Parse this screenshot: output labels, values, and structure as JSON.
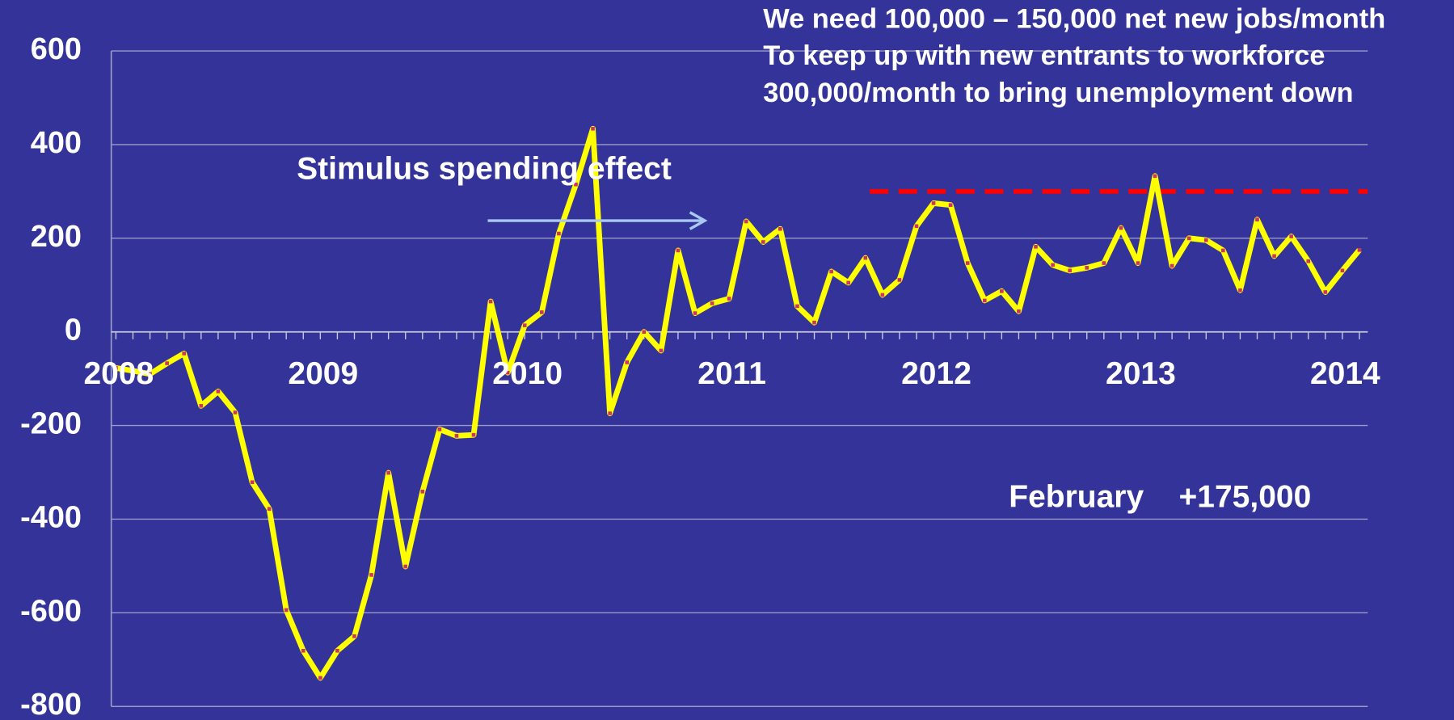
{
  "chart_data": {
    "type": "line",
    "categories": [
      "2008",
      null,
      null,
      null,
      null,
      null,
      null,
      null,
      null,
      null,
      null,
      null,
      "2009",
      null,
      null,
      null,
      null,
      null,
      null,
      null,
      null,
      null,
      null,
      null,
      "2010",
      null,
      null,
      null,
      null,
      null,
      null,
      null,
      null,
      null,
      null,
      null,
      "2011",
      null,
      null,
      null,
      null,
      null,
      null,
      null,
      null,
      null,
      null,
      null,
      "2012",
      null,
      null,
      null,
      null,
      null,
      null,
      null,
      null,
      null,
      null,
      null,
      "2013",
      null,
      null,
      null,
      null,
      null,
      null,
      null,
      null,
      null,
      null,
      null,
      "2014",
      null
    ],
    "series": [
      {
        "color": "#ffff00",
        "marker_color": "#cc3366",
        "values": [
          -77,
          -83,
          -90,
          -67,
          -46,
          -158,
          -127,
          -172,
          -321,
          -378,
          -594,
          -681,
          -739,
          -681,
          -650,
          -519,
          -301,
          -501,
          -341,
          -208,
          -222,
          -220,
          65,
          -87,
          14,
          42,
          210,
          315,
          434,
          -174,
          -65,
          0,
          -40,
          174,
          40,
          61,
          71,
          236,
          192,
          220,
          55,
          20,
          129,
          105,
          158,
          79,
          111,
          226,
          275,
          271,
          147,
          67,
          87,
          44,
          182,
          143,
          131,
          137,
          147,
          222,
          147,
          333,
          141,
          200,
          196,
          174,
          89,
          240,
          162,
          204,
          151,
          85,
          131,
          175
        ]
      }
    ],
    "ylim": [
      -800,
      600
    ],
    "yticks": [
      -800,
      -600,
      -400,
      -200,
      0,
      200,
      400,
      600
    ],
    "grid": true,
    "reference_line": {
      "value": 300,
      "color": "#ff0000"
    },
    "annotations": [
      "We need 100,000 – 150,000 net new jobs/month",
      "To keep up with new entrants to workforce",
      "300,000/month to bring unemployment down",
      "Stimulus spending effect",
      "February    +175,000"
    ]
  }
}
